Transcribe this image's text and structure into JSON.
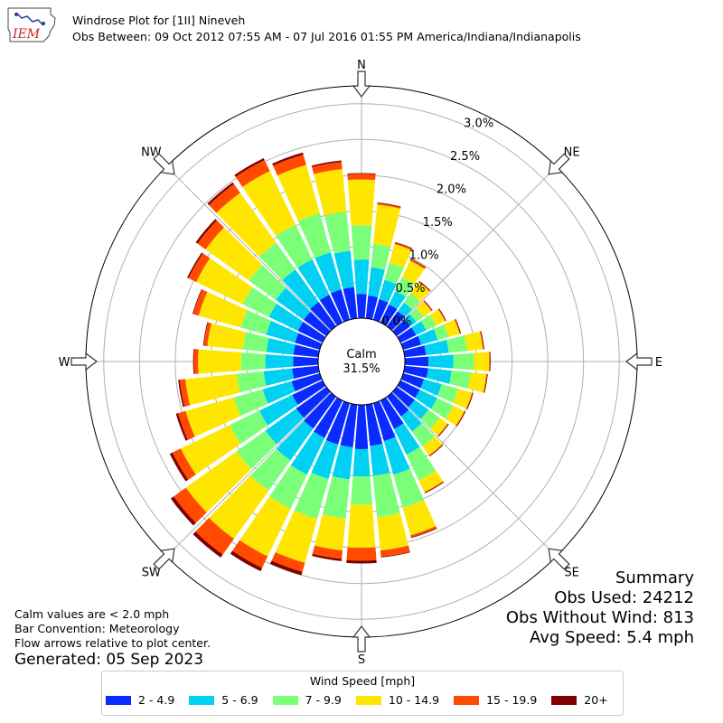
{
  "header": {
    "title": "Windrose Plot for [1II] Nineveh",
    "subtitle": "Obs Between: 09 Oct 2012 07:55 AM - 07 Jul 2016 01:55 PM America/Indiana/Indianapolis",
    "logo_text": "IEM"
  },
  "notes": {
    "line1": "Calm values are < 2.0 mph",
    "line2": "Bar Convention: Meteorology",
    "line3": "Flow arrows relative to plot center.",
    "generated": "Generated: 05 Sep 2023"
  },
  "summary": {
    "title": "Summary",
    "obs_used": "Obs Used: 24212",
    "obs_without_wind": "Obs Without Wind: 813",
    "avg_speed": "Avg Speed: 5.4 mph"
  },
  "calm": {
    "label": "Calm",
    "value": "31.5%"
  },
  "colors": {
    "bins": [
      "#0a2bff",
      "#00d1f3",
      "#7bff79",
      "#ffe600",
      "#ff4a00",
      "#800000"
    ],
    "grid": "#b0b0b0",
    "arrow_fill": "#ffffff",
    "arrow_stroke": "#333333"
  },
  "chart_data": {
    "type": "windrose",
    "directions_deg": [
      0,
      10,
      20,
      30,
      40,
      50,
      60,
      70,
      80,
      90,
      100,
      110,
      120,
      130,
      140,
      150,
      160,
      170,
      180,
      190,
      200,
      210,
      220,
      230,
      240,
      250,
      260,
      270,
      280,
      290,
      300,
      310,
      320,
      330,
      340,
      350
    ],
    "legend_title": "Wind Speed [mph]",
    "bins": [
      "2 - 4.9",
      "5 - 6.9",
      "7 - 9.9",
      "10 - 14.9",
      "15 - 19.9",
      "20+"
    ],
    "cumulative_percent": [
      [
        0.34,
        0.82,
        1.3,
        1.94,
        2.02,
        2.03
      ],
      [
        0.32,
        0.72,
        1.05,
        1.6,
        1.62,
        1.63
      ],
      [
        0.3,
        0.58,
        0.83,
        1.1,
        1.12,
        1.13
      ],
      [
        0.28,
        0.49,
        0.7,
        0.96,
        0.98,
        0.99
      ],
      [
        0.26,
        0.41,
        0.57,
        0.76,
        0.77,
        0.78
      ],
      [
        0.23,
        0.34,
        0.46,
        0.6,
        0.61,
        0.62
      ],
      [
        0.24,
        0.4,
        0.55,
        0.69,
        0.7,
        0.71
      ],
      [
        0.26,
        0.5,
        0.66,
        0.82,
        0.83,
        0.84
      ],
      [
        0.3,
        0.62,
        0.88,
        1.1,
        1.11,
        1.12
      ],
      [
        0.33,
        0.68,
        0.97,
        1.18,
        1.19,
        1.2
      ],
      [
        0.33,
        0.66,
        0.93,
        1.15,
        1.16,
        1.17
      ],
      [
        0.3,
        0.56,
        0.8,
        1.0,
        1.01,
        1.02
      ],
      [
        0.3,
        0.57,
        0.82,
        0.99,
        1.0,
        1.01
      ],
      [
        0.31,
        0.55,
        0.74,
        0.88,
        0.89,
        0.9
      ],
      [
        0.34,
        0.6,
        0.86,
        1.01,
        1.02,
        1.03
      ],
      [
        0.44,
        0.84,
        1.24,
        1.42,
        1.43,
        1.44
      ],
      [
        0.55,
        1.04,
        1.52,
        1.92,
        1.95,
        1.96
      ],
      [
        0.58,
        1.0,
        1.58,
        2.05,
        2.14,
        2.15
      ],
      [
        0.62,
        1.0,
        1.4,
        2.0,
        2.18,
        2.22
      ],
      [
        0.6,
        1.05,
        1.6,
        2.05,
        2.17,
        2.2
      ],
      [
        0.6,
        1.1,
        1.68,
        2.32,
        2.45,
        2.5
      ],
      [
        0.58,
        1.15,
        1.68,
        2.42,
        2.6,
        2.65
      ],
      [
        0.55,
        1.1,
        1.62,
        2.45,
        2.72,
        2.77
      ],
      [
        0.52,
        1.05,
        1.55,
        2.42,
        2.63,
        2.68
      ],
      [
        0.47,
        0.98,
        1.44,
        2.2,
        2.33,
        2.37
      ],
      [
        0.41,
        0.83,
        1.25,
        1.95,
        2.06,
        2.09
      ],
      [
        0.37,
        0.77,
        1.15,
        1.87,
        1.95,
        1.97
      ],
      [
        0.35,
        0.74,
        1.08,
        1.68,
        1.74,
        1.75
      ],
      [
        0.35,
        0.73,
        1.06,
        1.56,
        1.61,
        1.62
      ],
      [
        0.36,
        0.78,
        1.15,
        1.76,
        1.84,
        1.85
      ],
      [
        0.38,
        0.83,
        1.24,
        1.96,
        2.08,
        2.1
      ],
      [
        0.39,
        0.87,
        1.33,
        2.08,
        2.22,
        2.25
      ],
      [
        0.42,
        0.98,
        1.44,
        2.3,
        2.45,
        2.48
      ],
      [
        0.43,
        0.98,
        1.52,
        2.35,
        2.52,
        2.55
      ],
      [
        0.44,
        0.98,
        1.55,
        2.25,
        2.4,
        2.43
      ],
      [
        0.44,
        0.95,
        1.5,
        2.1,
        2.2,
        2.22
      ]
    ],
    "radial_ticks": [
      "0.0%",
      "0.5%",
      "1.0%",
      "1.5%",
      "2.0%",
      "2.5%",
      "3.0%"
    ],
    "radial_tick_values": [
      0,
      0.5,
      1.0,
      1.5,
      2.0,
      2.5,
      3.0
    ],
    "rmax": 3.25,
    "compass": [
      "N",
      "NE",
      "E",
      "SE",
      "S",
      "SW",
      "W",
      "NW"
    ],
    "compass_deg": [
      0,
      45,
      90,
      135,
      180,
      225,
      270,
      315
    ]
  }
}
